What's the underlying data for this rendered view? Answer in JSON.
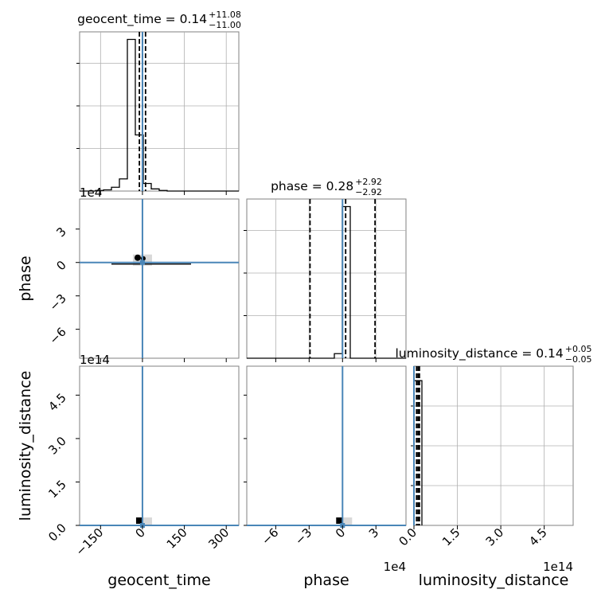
{
  "chart_data": {
    "type": "corner",
    "parameters": [
      {
        "name": "geocent_time",
        "xlabel": "geocent_time",
        "title": {
          "main": "geocent_time = 0.14",
          "sup": "+11.08",
          "sub": "−11.00"
        },
        "ticks": [
          -150,
          0,
          150,
          300
        ],
        "tick_labels": [
          "−150",
          "0",
          "150",
          "300"
        ],
        "range": [
          -225,
          345
        ],
        "median": 0.14,
        "quantiles": [
          -11.0,
          11.08
        ],
        "truth": 0,
        "hist": {
          "edges": [
            -225,
            -196.5,
            -168,
            -139.5,
            -111,
            -82.5,
            -54,
            -25.5,
            3,
            31.5,
            60,
            88.5,
            117,
            145.5,
            174,
            202.5,
            231,
            259.5,
            288,
            316.5,
            345
          ],
          "counts": [
            0,
            0,
            0.4,
            0.8,
            2.5,
            8,
            100,
            37,
            5,
            1.4,
            0.4,
            0,
            0,
            0,
            0,
            0,
            0,
            0,
            0,
            0
          ],
          "ymax": 105
        }
      },
      {
        "name": "phase",
        "xlabel": "phase",
        "offset": "1e4",
        "title": {
          "main": "phase = 0.28",
          "sup": "+2.92",
          "sub": "−2.92"
        },
        "ticks": [
          -6,
          -3,
          0,
          3
        ],
        "tick_labels": [
          "−6",
          "−3",
          "0",
          "3"
        ],
        "range": [
          -8.6,
          5.7
        ],
        "median": 0.28,
        "quantiles": [
          -2.92,
          2.92
        ],
        "truth": 0,
        "hist": {
          "edges": [
            -8.6,
            -7.885,
            -7.17,
            -6.455,
            -5.74,
            -5.025,
            -4.31,
            -3.595,
            -2.88,
            -2.165,
            -1.45,
            -0.735,
            -0.02,
            0.695,
            1.41,
            2.125,
            2.84,
            3.555,
            4.27,
            4.985,
            5.7
          ],
          "counts": [
            0,
            0,
            0,
            0,
            0,
            0,
            0,
            0,
            0,
            0,
            0,
            3,
            100,
            0,
            0,
            0,
            0,
            0,
            0,
            0
          ],
          "ymax": 105
        }
      },
      {
        "name": "luminosity_distance",
        "xlabel": "luminosity_distance",
        "offset": "1e14",
        "title": {
          "main": "luminosity_distance = 0.14",
          "sup": "+0.05",
          "sub": "−0.05"
        },
        "ticks": [
          0,
          1.5,
          3.0,
          4.5
        ],
        "tick_labels": [
          "0.0",
          "1.5",
          "3.0",
          "4.5"
        ],
        "range": [
          0,
          5.5
        ],
        "median": 0.14,
        "quantiles": [
          0.09,
          0.19
        ],
        "truth": 0,
        "hist": {
          "edges": [
            0,
            0.275
          ],
          "counts": [
            100
          ],
          "ymax": 110
        }
      }
    ],
    "scatter_panels": [
      {
        "x": "geocent_time",
        "y": "phase",
        "ylabel": "phase",
        "y_offset": "1e4"
      },
      {
        "x": "geocent_time",
        "y": "luminosity_distance",
        "ylabel": "luminosity_distance",
        "y_offset": "1e14"
      },
      {
        "x": "phase",
        "y": "luminosity_distance"
      }
    ],
    "grid": true,
    "colors": {
      "hist": "#000000",
      "truth": "#4a86b8",
      "grid": "#b0b0b0",
      "shade": "#d9d9d9"
    }
  }
}
